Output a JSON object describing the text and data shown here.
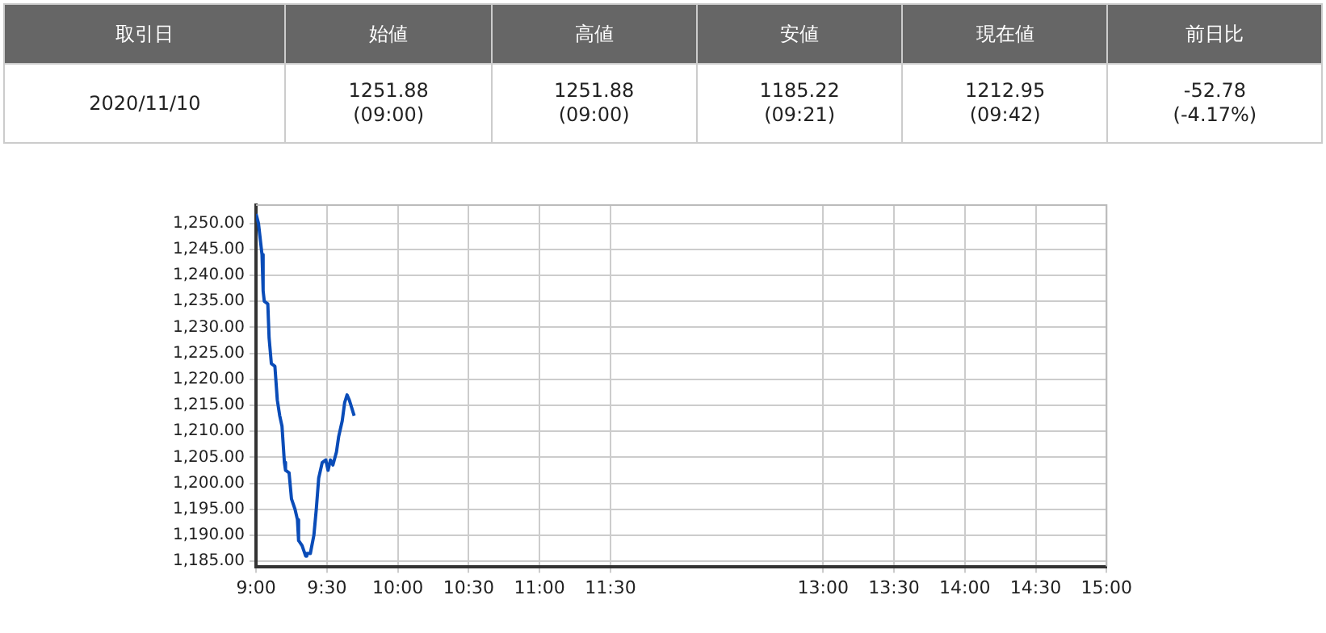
{
  "chart_data": [
    {
      "type": "other",
      "categories": [
        "取引日",
        "始値",
        "高値",
        "安値",
        "現在値",
        "前日比"
      ],
      "annotations": [
        "2020/11/10",
        "1251.88\n(09:00)",
        "1251.88\n(09:00)",
        "1185.22\n(09:21)",
        "1212.95\n(09:42)",
        "-52.78\n(-4.17%)"
      ]
    },
    {
      "type": "line",
      "grid": true,
      "marker": "none",
      "x": [
        9,
        9.017,
        9.042,
        9.05,
        9.058,
        9.083,
        9.092,
        9.108,
        9.133,
        9.15,
        9.167,
        9.183,
        9.2,
        9.208,
        9.233,
        9.25,
        9.275,
        9.292,
        9.3,
        9.325,
        9.35,
        9.358,
        9.383,
        9.408,
        9.425,
        9.442,
        9.467,
        9.492,
        9.508,
        9.525,
        9.542,
        9.567,
        9.583,
        9.608,
        9.625,
        9.642,
        9.658,
        9.675,
        9.692
      ],
      "series": [
        {
          "color": "#0a4cb8",
          "values": [
            1251.8,
            1250,
            1244,
            1237,
            1235,
            1234.5,
            1228,
            1223,
            1222.5,
            1216,
            1213,
            1211,
            1204,
            1202.5,
            1202,
            1197,
            1195,
            1193,
            1189,
            1188,
            1186,
            1186.5,
            1186.5,
            1190,
            1195,
            1201,
            1204,
            1204.5,
            1202.5,
            1204.5,
            1203.5,
            1206,
            1209,
            1212,
            1215.5,
            1217,
            1216,
            1214.5,
            1213
          ]
        }
      ],
      "xlim": [
        9,
        15
      ],
      "xticks": [
        {
          "value": 9,
          "label": "9:00"
        },
        {
          "value": 9.5,
          "label": "9:30"
        },
        {
          "value": 10,
          "label": "10:00"
        },
        {
          "value": 10.5,
          "label": "10:30"
        },
        {
          "value": 11,
          "label": "11:00"
        },
        {
          "value": 11.5,
          "label": "11:30"
        },
        {
          "value": 13,
          "label": "13:00"
        },
        {
          "value": 13.5,
          "label": "13:30"
        },
        {
          "value": 14,
          "label": "14:00"
        },
        {
          "value": 14.5,
          "label": "14:30"
        },
        {
          "value": 15,
          "label": "15:00"
        }
      ],
      "ylim": [
        1184,
        1253.5
      ],
      "yticks": [
        {
          "value": 1185,
          "label": "1,185.00"
        },
        {
          "value": 1190,
          "label": "1,190.00"
        },
        {
          "value": 1195,
          "label": "1,195.00"
        },
        {
          "value": 1200,
          "label": "1,200.00"
        },
        {
          "value": 1205,
          "label": "1,205.00"
        },
        {
          "value": 1210,
          "label": "1,210.00"
        },
        {
          "value": 1215,
          "label": "1,215.00"
        },
        {
          "value": 1220,
          "label": "1,220.00"
        },
        {
          "value": 1225,
          "label": "1,225.00"
        },
        {
          "value": 1230,
          "label": "1,230.00"
        },
        {
          "value": 1235,
          "label": "1,235.00"
        },
        {
          "value": 1240,
          "label": "1,240.00"
        },
        {
          "value": 1245,
          "label": "1,245.00"
        },
        {
          "value": 1250,
          "label": "1,250.00"
        }
      ]
    }
  ]
}
